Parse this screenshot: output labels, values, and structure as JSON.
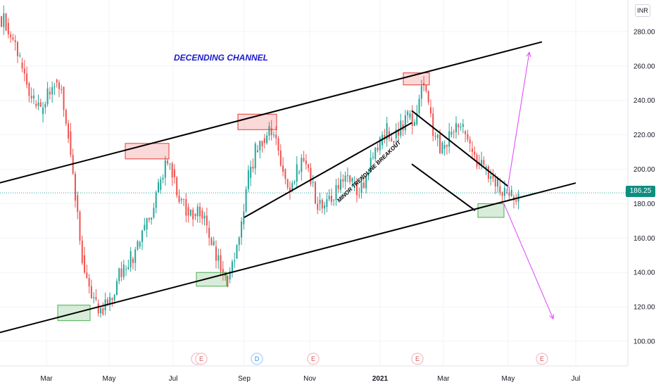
{
  "currency_badge": "INR",
  "last_price": "186.25",
  "colors": {
    "up": "#26a69a",
    "down": "#ef5350",
    "trendline": "#000000",
    "projection": "#e040fb",
    "title": "#1a1acd",
    "price_line": "#26a69a"
  },
  "chart_data": {
    "type": "candlestick",
    "ylim": [
      88,
      290
    ],
    "y_ticks": [
      100,
      120,
      140,
      160,
      180,
      200,
      220,
      240,
      260,
      280
    ],
    "x_ticks": [
      "Mar",
      "May",
      "Jul",
      "Sep",
      "Nov",
      "2021",
      "Mar",
      "May",
      "Jul"
    ],
    "x_range": [
      "2020-01",
      "2021-07"
    ],
    "grid": true,
    "last_close": 186.25,
    "approx_closes": [
      285,
      275,
      262,
      250,
      238,
      232,
      245,
      252,
      248,
      222,
      185,
      150,
      132,
      122,
      118,
      125,
      135,
      142,
      148,
      155,
      165,
      172,
      188,
      205,
      200,
      182,
      178,
      174,
      176,
      166,
      155,
      142,
      136,
      148,
      168,
      195,
      210,
      218,
      224,
      218,
      200,
      188,
      198,
      205,
      192,
      180,
      178,
      182,
      188,
      196,
      192,
      186,
      196,
      206,
      214,
      222,
      218,
      226,
      230,
      226,
      250,
      236,
      218,
      212,
      220,
      226,
      222,
      212,
      204,
      200,
      196,
      190,
      186,
      184,
      186
    ],
    "annotations": [
      {
        "text": "DECENDING CHANNEL"
      },
      {
        "text": "MINOR TRENDLINE BREAKOUT"
      }
    ],
    "channel": {
      "upper": [
        [
          "2020-01",
          190
        ],
        [
          "2021-06",
          274
        ]
      ],
      "lower": [
        [
          "2020-01",
          103
        ],
        [
          "2021-07",
          192
        ]
      ]
    },
    "wedge": {
      "upper": [
        [
          "2021-02",
          234
        ],
        [
          "2021-05",
          190
        ]
      ],
      "lower": [
        [
          "2021-02",
          203
        ],
        [
          "2021-04",
          176
        ]
      ]
    },
    "minor_trendline": [
      [
        "2020-09",
        172
      ],
      [
        "2021-02",
        227
      ]
    ],
    "highlight_boxes": [
      {
        "type": "support",
        "price_low": 112,
        "price_high": 121
      },
      {
        "type": "resistance",
        "price_low": 206,
        "price_high": 215
      },
      {
        "type": "support",
        "price_low": 132,
        "price_high": 140
      },
      {
        "type": "resistance",
        "price_low": 223,
        "price_high": 232
      },
      {
        "type": "resistance",
        "price_low": 249,
        "price_high": 256
      },
      {
        "type": "support",
        "price_low": 172,
        "price_high": 180
      }
    ],
    "projections": [
      {
        "direction": "up",
        "from": 186,
        "to": 268
      },
      {
        "direction": "down",
        "from": 180,
        "to": 113
      }
    ],
    "event_badges": [
      {
        "label": "E"
      },
      {
        "label": "E"
      },
      {
        "label": "D"
      },
      {
        "label": "E"
      },
      {
        "label": "E"
      },
      {
        "label": "E"
      }
    ]
  }
}
